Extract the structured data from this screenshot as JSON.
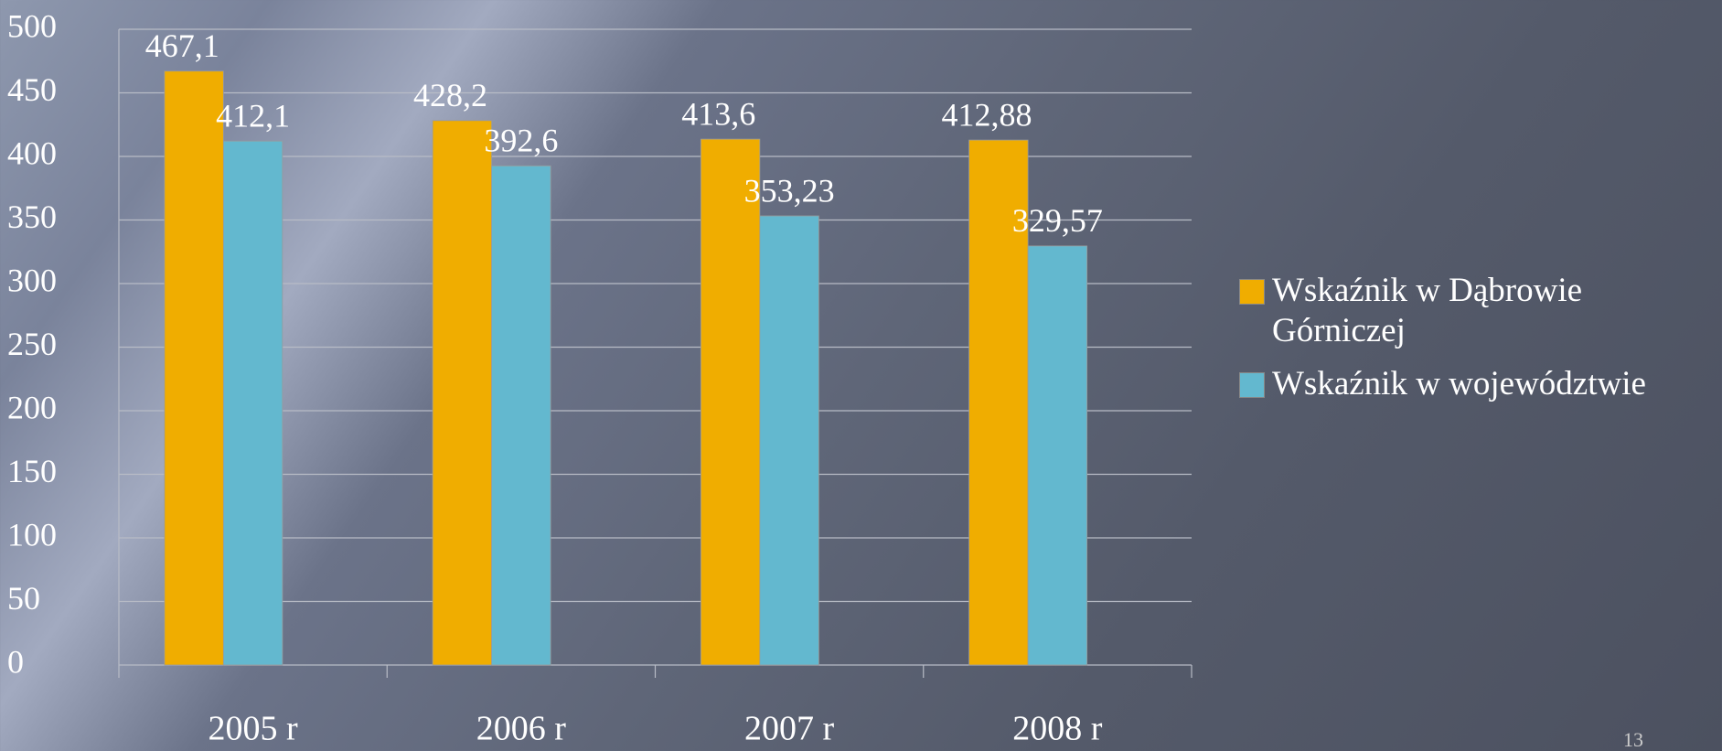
{
  "chart_data": {
    "type": "bar",
    "categories": [
      "2005 r",
      "2006 r",
      "2007 r",
      "2008 r"
    ],
    "series": [
      {
        "name": "Wskaźnik w Dąbrowie Górniczej",
        "color": "#f0ad00",
        "values": [
          467.1,
          428.2,
          413.6,
          412.88
        ],
        "value_labels": [
          "467,1",
          "428,2",
          "413,6",
          "412,88"
        ]
      },
      {
        "name": "Wskaźnik w województwie",
        "color": "#63b8cf",
        "values": [
          412.1,
          392.6,
          353.23,
          329.57
        ],
        "value_labels": [
          "412,1",
          "392,6",
          "353,23",
          "329,57"
        ]
      }
    ],
    "ylim": [
      0,
      500
    ],
    "yticks": [
      0,
      50,
      100,
      150,
      200,
      250,
      300,
      350,
      400,
      450,
      500
    ],
    "grid": true,
    "legend": "right"
  },
  "page_number": "13"
}
